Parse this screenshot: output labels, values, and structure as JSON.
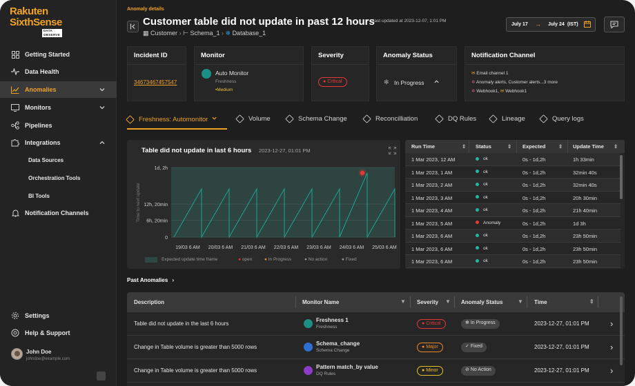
{
  "brand": {
    "line1": "Rakuten",
    "line2": "SixthSense",
    "tag": "DATA OBSERVE"
  },
  "sidebar": {
    "items": [
      {
        "label": "Getting Started"
      },
      {
        "label": "Data Health"
      },
      {
        "label": "Anomalies"
      },
      {
        "label": "Monitors"
      },
      {
        "label": "Pipelines"
      },
      {
        "label": "Integrations"
      },
      {
        "label": "Data Sources"
      },
      {
        "label": "Orchestration Tools"
      },
      {
        "label": "BI Tools"
      },
      {
        "label": "Notification Channels"
      }
    ],
    "bottom": [
      {
        "label": "Settings"
      },
      {
        "label": "Help & Support"
      }
    ],
    "user": {
      "name": "John Doe",
      "email": "johndoe@example.com"
    }
  },
  "header": {
    "eyebrow": "Anomaly details",
    "title": "Customer table did not update in past 12 hours",
    "updated": "last updated at 2023-12-07, 1:01 PM",
    "breadcrumb": [
      "Customer",
      "Schema_1",
      "Database_1"
    ],
    "date_from": "July 17",
    "date_to": "July 24",
    "tz": "(IST)"
  },
  "cards": {
    "incident": {
      "title": "Incident ID",
      "value": "34673467457547"
    },
    "monitor": {
      "title": "Monitor",
      "name": "Auto Monitor",
      "type": "Freshness",
      "level": "Medium"
    },
    "severity": {
      "title": "Severity",
      "value": "Critical"
    },
    "status": {
      "title": "Anomaly Status",
      "value": "In Progress"
    },
    "notif": {
      "title": "Notification Channel",
      "line1": "Email channel 1",
      "line2": "Anomaly alerts, Customer alerts...3 more",
      "line3a": "Webhook1,",
      "line3b": "Webhook1"
    }
  },
  "tabs": [
    "Freshness: Automonitor",
    "Volume",
    "Schema Change",
    "Reconcilliation",
    "DQ Rules",
    "Lineage",
    "Query logs"
  ],
  "chart": {
    "title": "Table did not update in last 6 hours",
    "timestamp": "2023-12-27, 01:01 PM",
    "ylabel": "Time to next update",
    "legend": [
      "Expected update time frame",
      "open",
      "In Progress",
      "No action",
      "Fixed"
    ]
  },
  "chart_data": {
    "type": "line",
    "title": "Table did not update in last 6 hours",
    "xlabel": "",
    "ylabel": "Time to next update",
    "x": [
      "19/03 6 AM",
      "20/03 6 AM",
      "21/03 6 AM",
      "22/03 6 AM",
      "23/03 6 AM",
      "24/03 6 AM",
      "25/03 6 AM"
    ],
    "yticks": [
      "0",
      "6h, 20min",
      "12h, 20min",
      "1d, 2h"
    ],
    "ylim_hours": [
      0,
      26
    ],
    "sawtooth_peaks_hours": [
      18,
      18,
      18,
      18,
      18,
      18,
      24,
      18
    ],
    "anomaly_point": {
      "x": "24/03 6 AM",
      "y_hours": 24
    }
  },
  "runs": {
    "headers": [
      "Run Time",
      "Status",
      "Expected",
      "Update Time"
    ],
    "rows": [
      {
        "run": "1 Mar 2023, 12 AM",
        "status": "ok",
        "color": "#2bb3a3",
        "expected": "0s - 1d,2h",
        "update": "1h 33min"
      },
      {
        "run": "1 Mar 2023, 1 AM",
        "status": "ok",
        "color": "#2bb3a3",
        "expected": "0s - 1d,2h",
        "update": "32min 40s"
      },
      {
        "run": "1 Mar 2023, 2 AM",
        "status": "ok",
        "color": "#2bb3a3",
        "expected": "0s - 1d,2h",
        "update": "32min 40s"
      },
      {
        "run": "1 Mar 2023, 3 AM",
        "status": "ok",
        "color": "#2bb3a3",
        "expected": "0s - 1d,2h",
        "update": "20h 30min"
      },
      {
        "run": "1 Mar 2023, 4 AM",
        "status": "ok",
        "color": "#2bb3a3",
        "expected": "0s - 1d,2h",
        "update": "21h 40min"
      },
      {
        "run": "1 Mar 2023, 5 AM",
        "status": "Anomaly",
        "color": "#e53935",
        "expected": "0s - 1d,2h",
        "update": "1d 3h"
      },
      {
        "run": "1 Mar 2023, 6 AM",
        "status": "ok",
        "color": "#2bb3a3",
        "expected": "0s - 1d,2h",
        "update": "23h 50min"
      },
      {
        "run": "1 Mar 2023, 6 AM",
        "status": "ok",
        "color": "#2bb3a3",
        "expected": "0s - 1d,2h",
        "update": "23h 50min"
      },
      {
        "run": "1 Mar 2023, 6 AM",
        "status": "ok",
        "color": "#2bb3a3",
        "expected": "0s - 1d,2h",
        "update": "23h 50min"
      }
    ]
  },
  "past": {
    "title": "Past Anomalies",
    "headers": [
      "Description",
      "Monitor Name",
      "Severity",
      "Anomaly Status",
      "Time"
    ],
    "rows": [
      {
        "desc": "Table did not update in the last 6 hours",
        "mon": "Freshness 1",
        "montype": "Freshness",
        "sev": "Critical",
        "sevColor": "#e53935",
        "status": "In Progress",
        "time": "2023-12-27, 01:01 PM",
        "icColor": "#1e8f86"
      },
      {
        "desc": "Change in Table volume is greater than 5000 rows",
        "mon": "Schema_change",
        "montype": "Schema Change",
        "sev": "Major",
        "sevColor": "#f08a24",
        "status": "Fixed",
        "time": "2023-12-27, 01:01 PM",
        "icColor": "#2f6fd1"
      },
      {
        "desc": "Change in Table volume is greater than 5000 rows",
        "mon": "Pattern match_by value",
        "montype": "DQ Rules",
        "sev": "Minor",
        "sevColor": "#e8c31f",
        "status": "No Action",
        "time": "2023-12-27, 01:01 PM",
        "icColor": "#8c3cc8"
      }
    ]
  },
  "colors": {
    "accent": "#f0a227",
    "teal": "#2bb3a3",
    "critical": "#e53935"
  }
}
